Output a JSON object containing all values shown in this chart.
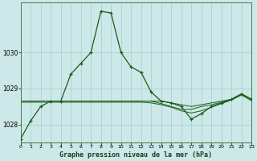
{
  "title": "Graphe pression niveau de la mer (hPa)",
  "background_color": "#cce8e8",
  "grid_color": "#aacccc",
  "line_color": "#1a5c1a",
  "hours": [
    0,
    1,
    2,
    3,
    4,
    5,
    6,
    7,
    8,
    9,
    10,
    11,
    12,
    13,
    14,
    15,
    16,
    17,
    18,
    19,
    20,
    21,
    22,
    23
  ],
  "p_main": [
    1027.6,
    1028.1,
    1028.5,
    1028.65,
    1028.65,
    1029.4,
    1029.7,
    1030.0,
    1031.15,
    1031.1,
    1030.0,
    1029.6,
    1029.45,
    1028.9,
    1028.65,
    1028.6,
    1028.5,
    1028.15,
    1028.3,
    1028.5,
    1028.6,
    1028.7,
    1028.85,
    1028.7
  ],
  "p_flat1": [
    1028.65,
    1028.65,
    1028.65,
    1028.65,
    1028.65,
    1028.65,
    1028.65,
    1028.65,
    1028.65,
    1028.65,
    1028.65,
    1028.65,
    1028.65,
    1028.65,
    1028.65,
    1028.6,
    1028.55,
    1028.5,
    1028.55,
    1028.6,
    1028.65,
    1028.7,
    1028.85,
    1028.7
  ],
  "p_flat2": [
    1028.65,
    1028.65,
    1028.65,
    1028.65,
    1028.65,
    1028.65,
    1028.65,
    1028.65,
    1028.65,
    1028.65,
    1028.65,
    1028.65,
    1028.65,
    1028.65,
    1028.58,
    1028.5,
    1028.42,
    1028.42,
    1028.5,
    1028.55,
    1028.62,
    1028.7,
    1028.85,
    1028.7
  ],
  "p_flat3": [
    1028.62,
    1028.62,
    1028.62,
    1028.62,
    1028.62,
    1028.62,
    1028.62,
    1028.62,
    1028.62,
    1028.62,
    1028.62,
    1028.62,
    1028.62,
    1028.6,
    1028.55,
    1028.48,
    1028.38,
    1028.32,
    1028.38,
    1028.48,
    1028.58,
    1028.68,
    1028.82,
    1028.66
  ],
  "ylim_min": 1027.5,
  "ylim_max": 1031.4,
  "yticks": [
    1028,
    1029,
    1030
  ],
  "xticks": [
    0,
    1,
    2,
    3,
    4,
    5,
    6,
    7,
    8,
    9,
    10,
    11,
    12,
    13,
    14,
    15,
    16,
    17,
    18,
    19,
    20,
    21,
    22,
    23
  ]
}
